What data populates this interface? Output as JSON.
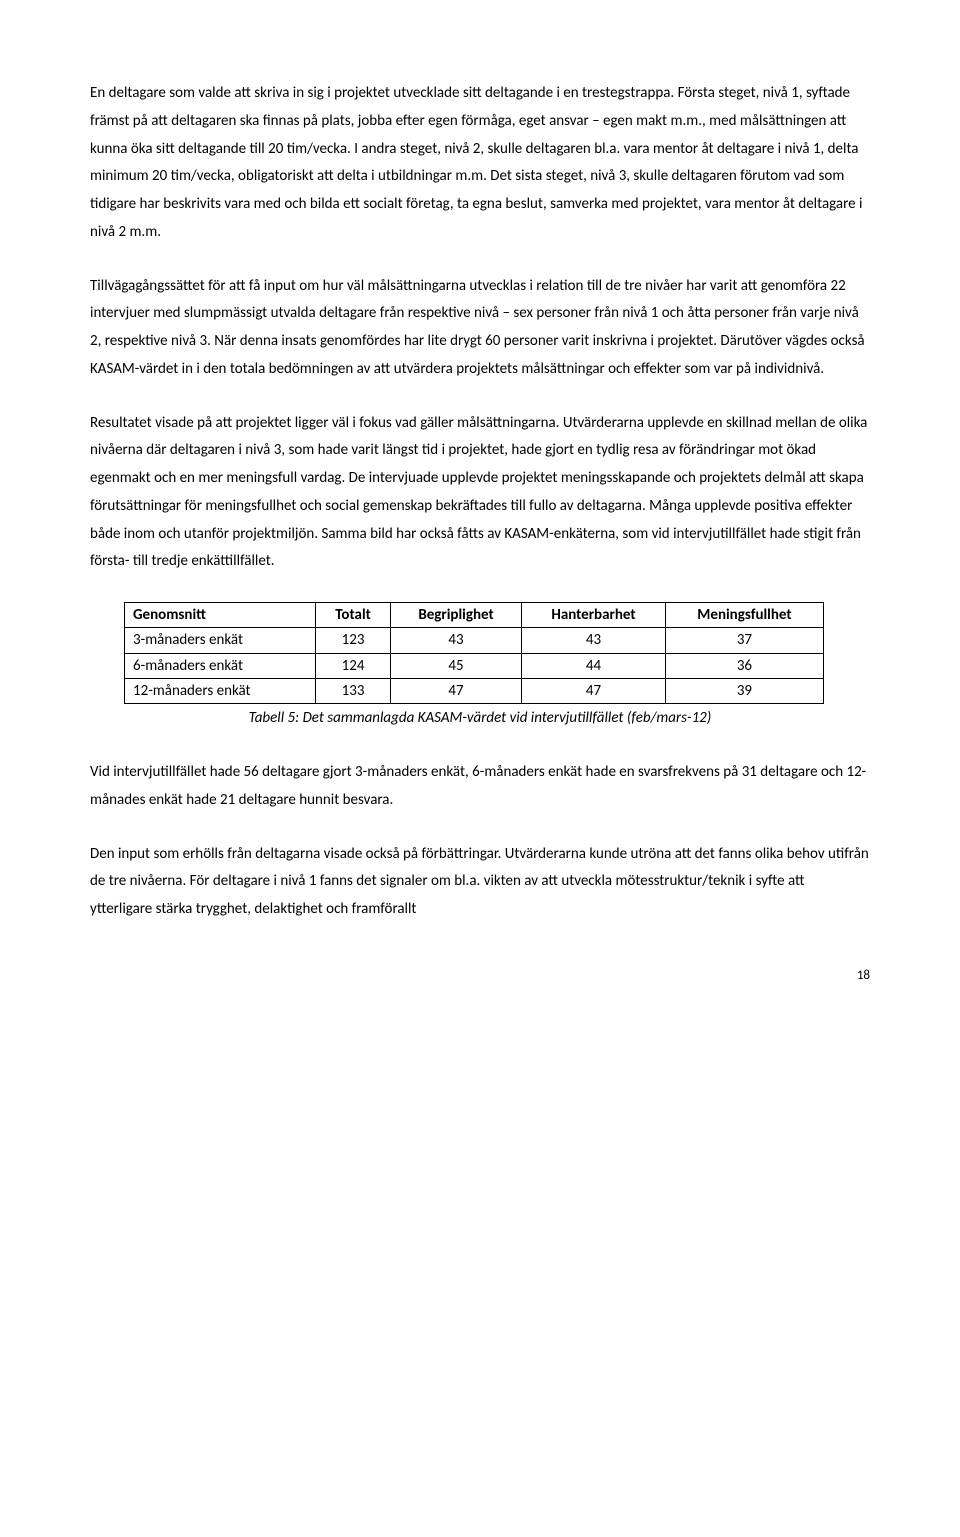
{
  "paragraphs": {
    "p1": "En deltagare som valde att skriva in sig i projektet utvecklade sitt deltagande i en trestegstrappa. Första steget, nivå 1, syftade främst på att deltagaren ska finnas på plats, jobba efter egen förmåga, eget ansvar – egen makt m.m., med målsättningen att kunna öka sitt deltagande till 20 tim/vecka. I andra steget, nivå 2, skulle deltagaren bl.a. vara mentor åt deltagare i nivå 1, delta minimum 20 tim/vecka, obligatoriskt att delta i utbildningar m.m. Det sista steget, nivå 3, skulle deltagaren förutom vad som tidigare har beskrivits vara med och bilda ett socialt företag, ta egna beslut, samverka med projektet, vara mentor åt deltagare i nivå 2 m.m.",
    "p2": "Tillvägagångssättet för att få input om hur väl målsättningarna utvecklas i relation till de tre nivåer har varit att genomföra 22 intervjuer med slumpmässigt utvalda deltagare från respektive nivå – sex personer från nivå 1 och åtta personer från varje nivå 2, respektive nivå 3. När denna insats genomfördes har lite drygt 60 personer varit inskrivna i projektet. Därutöver vägdes också KASAM-värdet in i den totala bedömningen av att utvärdera projektets målsättningar och effekter som var på individnivå.",
    "p3": "Resultatet visade på att projektet ligger väl i fokus vad gäller målsättningarna. Utvärderarna upplevde en skillnad mellan de olika nivåerna där deltagaren i nivå 3, som hade varit längst tid i projektet, hade gjort en tydlig resa av förändringar mot ökad egenmakt och en mer meningsfull vardag. De intervjuade upplevde projektet meningsskapande och projektets delmål att skapa förutsättningar för meningsfullhet och social gemenskap bekräftades till fullo av deltagarna. Många upplevde positiva effekter både inom och utanför projektmiljön. Samma bild har också fåtts av KASAM-enkäterna, som vid intervjutillfället hade stigit från första- till tredje enkättillfället.",
    "p4": "Vid intervjutillfället hade 56 deltagare gjort 3-månaders enkät, 6-månaders enkät hade en svarsfrekvens på 31 deltagare och 12-månades enkät hade 21 deltagare hunnit besvara.",
    "p5": "Den input som erhölls från deltagarna visade också på förbättringar. Utvärderarna kunde utröna att det fanns olika behov utifrån de tre nivåerna. För deltagare i nivå 1 fanns det signaler om bl.a. vikten av att utveckla mötesstruktur/teknik i syfte att ytterligare stärka trygghet, delaktighet och framförallt"
  },
  "table": {
    "columns": [
      "Genomsnitt",
      "Totalt",
      "Begriplighet",
      "Hanterbarhet",
      "Meningsfullhet"
    ],
    "rows": [
      [
        "3-månaders enkät",
        "123",
        "43",
        "43",
        "37"
      ],
      [
        "6-månaders enkät",
        "124",
        "45",
        "44",
        "36"
      ],
      [
        "12-månaders enkät",
        "133",
        "47",
        "47",
        "39"
      ]
    ],
    "caption": "Tabell 5: Det sammanlagda KASAM-värdet vid intervjutillfället (feb/mars-12)"
  },
  "page_number": "18"
}
